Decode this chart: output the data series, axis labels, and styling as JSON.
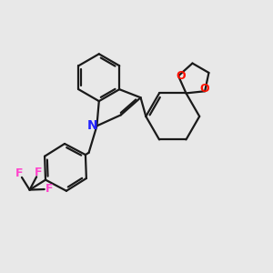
{
  "bg_color": "#e8e8e8",
  "bond_color": "#1a1a1a",
  "n_color": "#2222ff",
  "o_color": "#ff1100",
  "f_color": "#ff44cc",
  "lw": 1.6,
  "fig_size": [
    3.0,
    3.0
  ],
  "dpi": 100,
  "xlim": [
    0,
    10
  ],
  "ylim": [
    0,
    10
  ]
}
